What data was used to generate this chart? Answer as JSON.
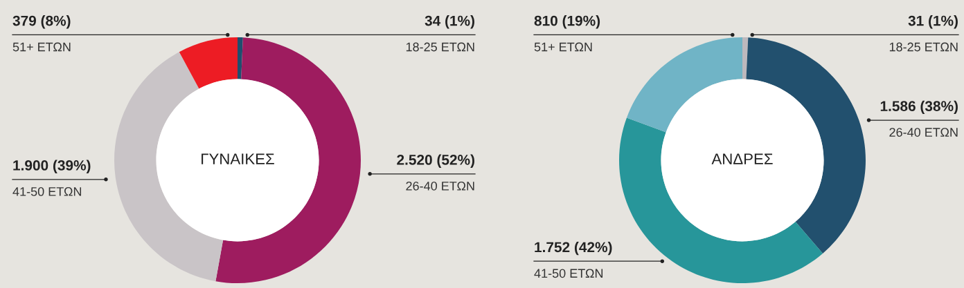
{
  "chart_data": [
    {
      "type": "donut",
      "title": "ΓΥΝΑΙΚΕΣ",
      "categories": [
        "18-25 ΕΤΩΝ",
        "26-40 ΕΤΩΝ",
        "41-50 ΕΤΩΝ",
        "51+ ΕΤΩΝ"
      ],
      "values": [
        34,
        2520,
        1900,
        379
      ],
      "value_labels": [
        "34 (1%)",
        "2.520 (52%)",
        "1.900 (39%)",
        "379 (8%)"
      ],
      "colors": [
        "#1f4e6e",
        "#9e1c5f",
        "#c9c4c7",
        "#ed1c24"
      ],
      "legend": false
    },
    {
      "type": "donut",
      "title": "ΑΝΔΡΕΣ",
      "categories": [
        "18-25 ΕΤΩΝ",
        "26-40 ΕΤΩΝ",
        "41-50 ΕΤΩΝ",
        "51+ ΕΤΩΝ"
      ],
      "values": [
        31,
        1586,
        1752,
        810
      ],
      "value_labels": [
        "31 (1%)",
        "1.586 (38%)",
        "1.752 (42%)",
        "810 (19%)"
      ],
      "colors": [
        "#bdb9bd",
        "#22506e",
        "#27969a",
        "#70b4c6"
      ],
      "legend": false
    }
  ]
}
